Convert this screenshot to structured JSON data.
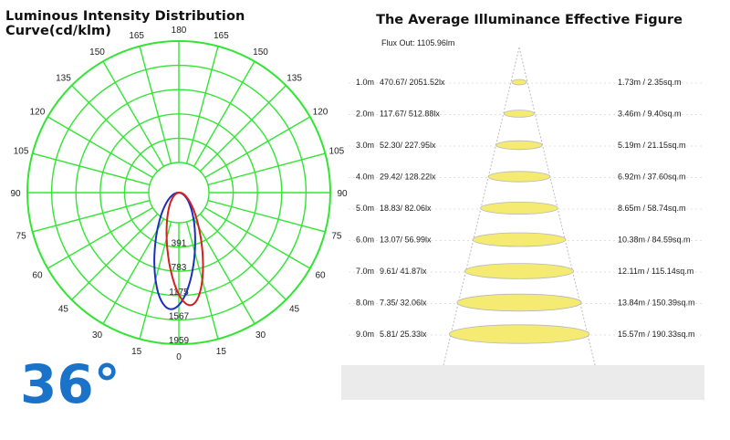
{
  "left": {
    "title": "Luminous Intensity Distribution Curve(cd/klm)",
    "beam_label": "36°",
    "angle_labels": [
      {
        "text": "180",
        "deg": 180
      },
      {
        "text": "165",
        "deg": -165
      },
      {
        "text": "165",
        "deg": 165
      },
      {
        "text": "150",
        "deg": -150
      },
      {
        "text": "150",
        "deg": 150
      },
      {
        "text": "135",
        "deg": -135
      },
      {
        "text": "135",
        "deg": 135
      },
      {
        "text": "120",
        "deg": -120
      },
      {
        "text": "120",
        "deg": 120
      },
      {
        "text": "105",
        "deg": -105
      },
      {
        "text": "105",
        "deg": 105
      },
      {
        "text": "90",
        "deg": -90
      },
      {
        "text": "90",
        "deg": 90
      },
      {
        "text": "75",
        "deg": -75
      },
      {
        "text": "75",
        "deg": 75
      },
      {
        "text": "60",
        "deg": -60
      },
      {
        "text": "60",
        "deg": 60
      },
      {
        "text": "45",
        "deg": -45
      },
      {
        "text": "45",
        "deg": 45
      },
      {
        "text": "30",
        "deg": -30
      },
      {
        "text": "30",
        "deg": 30
      },
      {
        "text": "15",
        "deg": -15
      },
      {
        "text": "15",
        "deg": 15
      },
      {
        "text": "0",
        "deg": 0
      }
    ],
    "scale_labels": [
      "391",
      "783",
      "1175",
      "1567",
      "1959"
    ],
    "curve_colors": {
      "grid": "#33e533",
      "red": "#d42020",
      "blue": "#1a2fbf"
    }
  },
  "right": {
    "title": "The Average Illuminance Effective Figure",
    "flux": "Flux Out: 1105.96lm",
    "rows": [
      {
        "dist": "1.0m",
        "ill": "470.67/ 2051.52lx",
        "area": "1.73m / 2.35sq.m"
      },
      {
        "dist": "2.0m",
        "ill": "117.67/ 512.88lx",
        "area": "3.46m / 9.40sq.m"
      },
      {
        "dist": "3.0m",
        "ill": "52.30/ 227.95lx",
        "area": "5.19m / 21.15sq.m"
      },
      {
        "dist": "4.0m",
        "ill": "29.42/ 128.22lx",
        "area": "6.92m / 37.60sq.m"
      },
      {
        "dist": "5.0m",
        "ill": "18.83/ 82.06lx",
        "area": "8.65m / 58.74sq.m"
      },
      {
        "dist": "6.0m",
        "ill": "13.07/ 56.99lx",
        "area": "10.38m / 84.59sq.m"
      },
      {
        "dist": "7.0m",
        "ill": "9.61/ 41.87lx",
        "area": "12.11m / 115.14sq.m"
      },
      {
        "dist": "8.0m",
        "ill": "7.35/ 32.06lx",
        "area": "13.84m / 150.39sq.m"
      },
      {
        "dist": "9.0m",
        "ill": "5.81/ 25.33lx",
        "area": "15.57m / 190.33sq.m"
      }
    ],
    "spot_color": "#f5ea72"
  }
}
